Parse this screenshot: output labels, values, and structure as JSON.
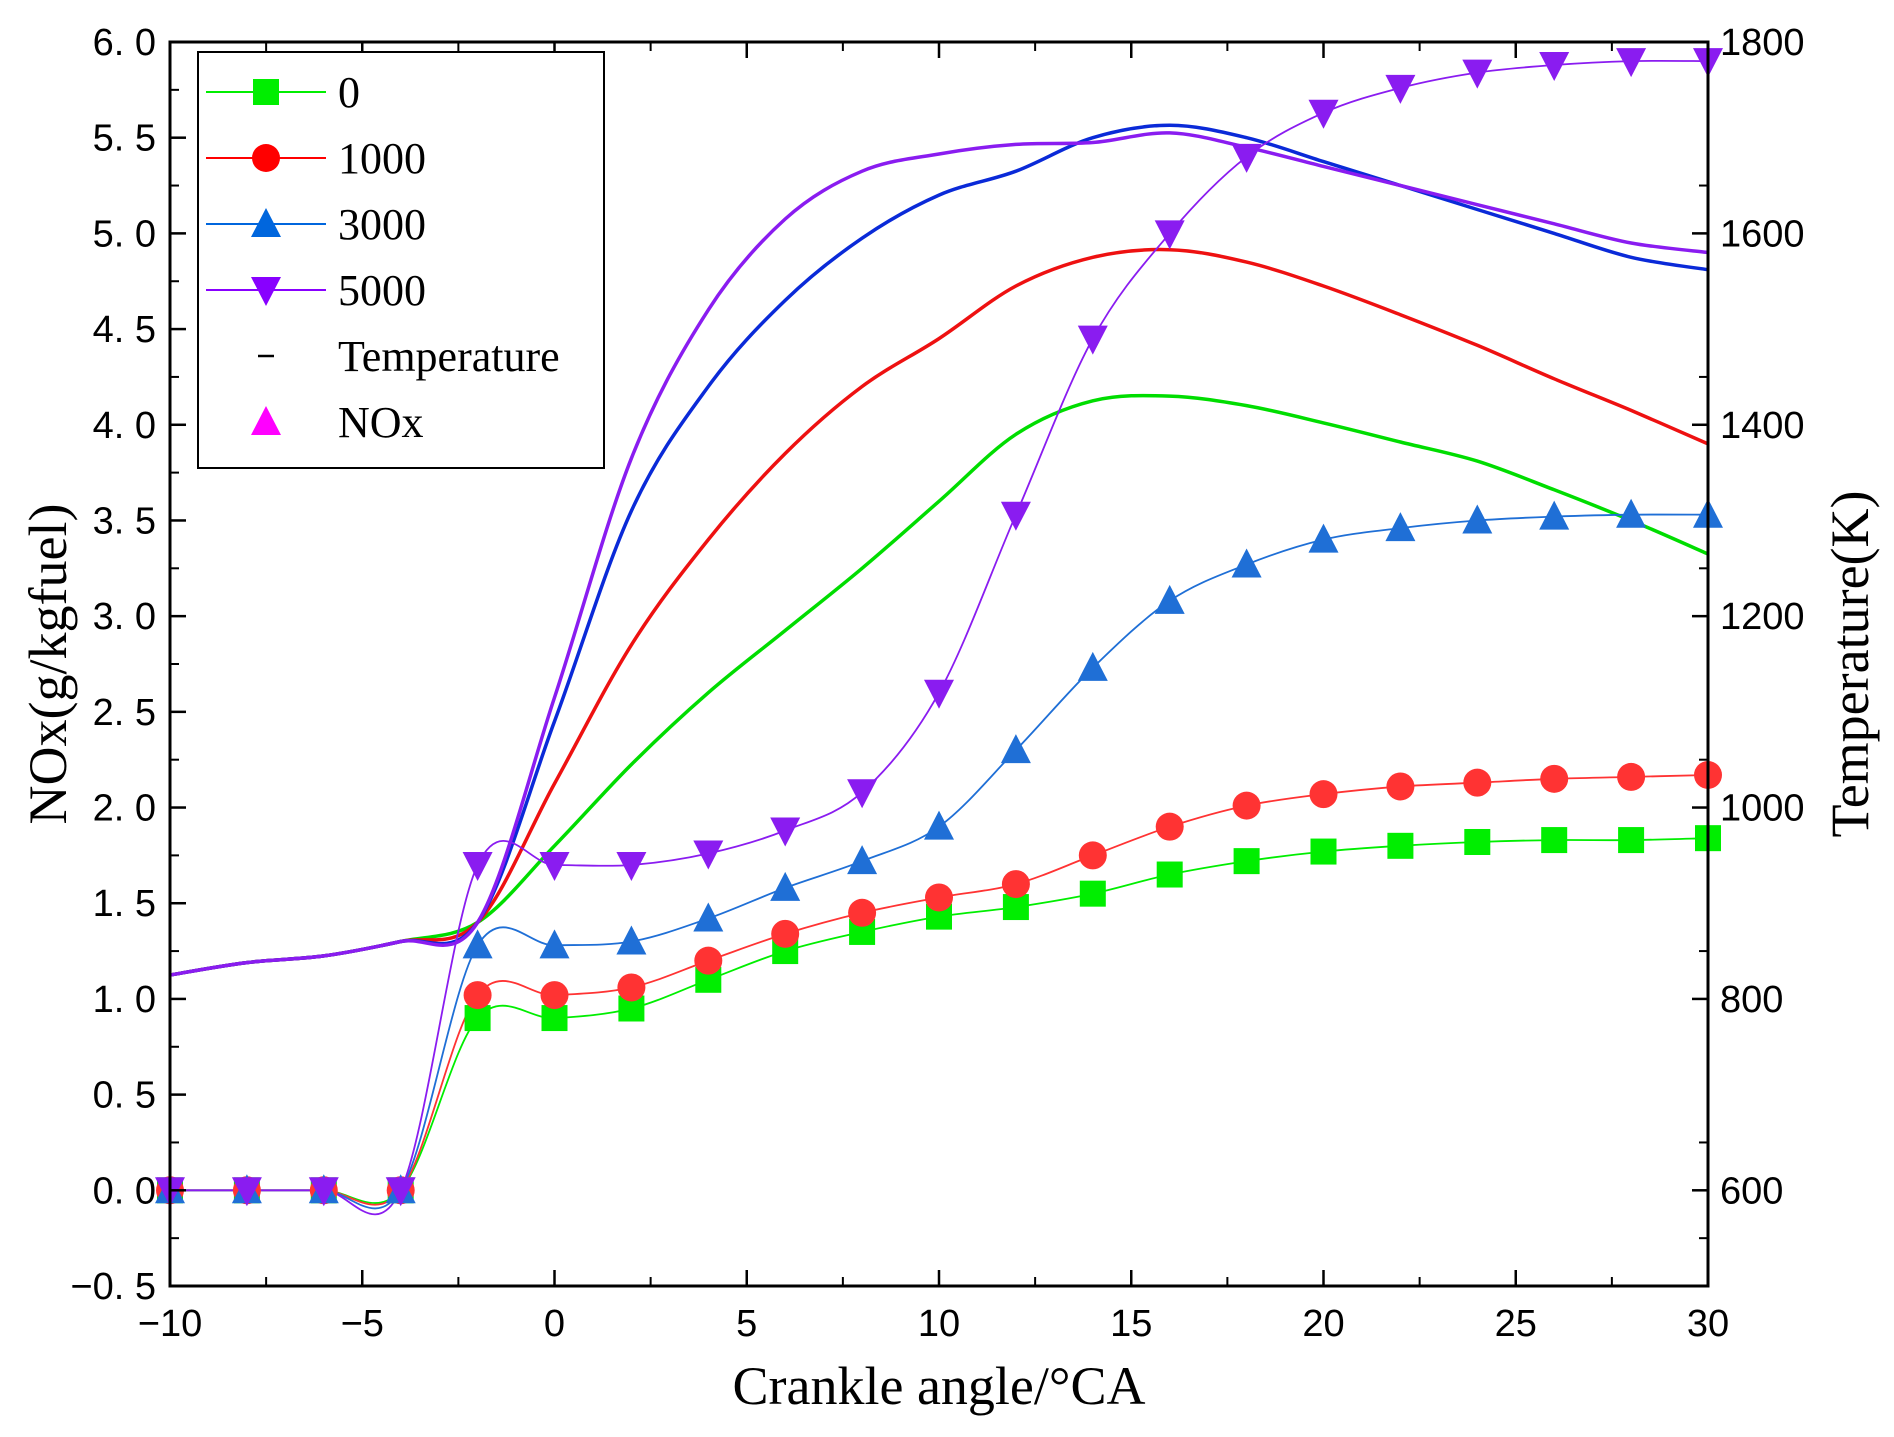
{
  "chart_data": {
    "type": "line",
    "title": "",
    "xlabel": "Crankle angle/°CA",
    "ylabel_left": "NOx(g/kgfuel)",
    "ylabel_right": "Temperature(K)",
    "xlim": [
      -10,
      30
    ],
    "ylim_left": [
      -0.5,
      6.0
    ],
    "ylim_right": [
      500,
      1800
    ],
    "x_ticks": [
      -10,
      -5,
      0,
      5,
      10,
      15,
      20,
      25,
      30
    ],
    "x_tick_labels": [
      "−10",
      "−5",
      "0",
      "5",
      "10",
      "15",
      "20",
      "25",
      "30"
    ],
    "y_left_ticks": [
      -0.5,
      0.0,
      0.5,
      1.0,
      1.5,
      2.0,
      2.5,
      3.0,
      3.5,
      4.0,
      4.5,
      5.0,
      5.5,
      6.0
    ],
    "y_left_tick_labels": [
      "−0. 5",
      "0. 0",
      "0. 5",
      "1. 0",
      "1. 5",
      "2. 0",
      "2. 5",
      "3. 0",
      "3. 5",
      "4. 0",
      "4. 5",
      "5. 0",
      "5. 5",
      "6. 0"
    ],
    "y_right_ticks": [
      600,
      800,
      1000,
      1200,
      1400,
      1600,
      1800
    ],
    "y_right_tick_labels": [
      "600",
      "800",
      "1000",
      "1200",
      "1400",
      "1600",
      "1800"
    ],
    "grid": false,
    "legend_position": "top-left",
    "legend": [
      {
        "label": "0",
        "color": "#00ee00",
        "marker": "square"
      },
      {
        "label": "1000",
        "color": "#ff0000",
        "marker": "circle"
      },
      {
        "label": "3000",
        "color": "#0066dd",
        "marker": "triangle-up"
      },
      {
        "label": "5000",
        "color": "#8800ff",
        "marker": "triangle-down"
      },
      {
        "label": "Temperature",
        "color": "#000000",
        "marker": "line"
      },
      {
        "label": "NOx",
        "color": "#ff00ff",
        "marker": "triangle-up"
      }
    ],
    "nox_series": [
      {
        "name": "0",
        "color": "#00ee00",
        "marker": "square",
        "x": [
          -10,
          -8,
          -6,
          -4,
          -2,
          0,
          2,
          4,
          6,
          8,
          10,
          12,
          14,
          16,
          18,
          20,
          22,
          24,
          26,
          28,
          30
        ],
        "y": [
          0,
          0,
          0,
          0,
          0.9,
          0.9,
          0.95,
          1.1,
          1.25,
          1.35,
          1.43,
          1.48,
          1.55,
          1.65,
          1.72,
          1.77,
          1.8,
          1.82,
          1.83,
          1.83,
          1.84
        ]
      },
      {
        "name": "1000",
        "color": "#ff3333",
        "marker": "circle",
        "x": [
          -10,
          -8,
          -6,
          -4,
          -2,
          0,
          2,
          4,
          6,
          8,
          10,
          12,
          14,
          16,
          18,
          20,
          22,
          24,
          26,
          28,
          30
        ],
        "y": [
          0,
          0,
          0,
          0,
          1.02,
          1.02,
          1.06,
          1.2,
          1.34,
          1.45,
          1.53,
          1.6,
          1.75,
          1.9,
          2.01,
          2.07,
          2.11,
          2.13,
          2.15,
          2.16,
          2.17
        ]
      },
      {
        "name": "3000",
        "color": "#1f6fd6",
        "marker": "triangle-up",
        "x": [
          -10,
          -8,
          -6,
          -4,
          -2,
          0,
          2,
          4,
          6,
          8,
          10,
          12,
          14,
          16,
          18,
          20,
          22,
          24,
          26,
          28,
          30
        ],
        "y": [
          0,
          0,
          0,
          0,
          1.28,
          1.28,
          1.3,
          1.42,
          1.58,
          1.72,
          1.9,
          2.3,
          2.73,
          3.08,
          3.27,
          3.4,
          3.46,
          3.5,
          3.52,
          3.53,
          3.53
        ]
      },
      {
        "name": "5000",
        "color": "#8a1cf0",
        "marker": "triangle-down",
        "x": [
          -10,
          -8,
          -6,
          -4,
          -2,
          0,
          2,
          4,
          6,
          8,
          10,
          12,
          14,
          16,
          18,
          20,
          22,
          24,
          26,
          28,
          30
        ],
        "y": [
          0,
          0,
          0,
          0,
          1.7,
          1.7,
          1.7,
          1.76,
          1.88,
          2.08,
          2.6,
          3.53,
          4.45,
          5.0,
          5.4,
          5.63,
          5.76,
          5.84,
          5.88,
          5.9,
          5.9
        ]
      }
    ],
    "temperature_series": [
      {
        "name": "0",
        "color": "#00dd00",
        "x": [
          -10,
          -8,
          -6,
          -4,
          -2,
          0,
          2,
          4,
          6,
          8,
          10,
          12,
          14,
          16,
          18,
          20,
          22,
          24,
          26,
          28,
          30
        ],
        "y": [
          825,
          838,
          845,
          860,
          880,
          960,
          1045,
          1120,
          1185,
          1250,
          1320,
          1390,
          1425,
          1430,
          1420,
          1402,
          1382,
          1362,
          1332,
          1300,
          1265
        ]
      },
      {
        "name": "1000",
        "color": "#ee1111",
        "x": [
          -10,
          -8,
          -6,
          -4,
          -2,
          0,
          2,
          4,
          6,
          8,
          10,
          12,
          14,
          16,
          18,
          20,
          22,
          24,
          26,
          28,
          30
        ],
        "y": [
          825,
          838,
          845,
          860,
          880,
          1025,
          1170,
          1280,
          1370,
          1440,
          1490,
          1545,
          1575,
          1583,
          1570,
          1545,
          1515,
          1483,
          1448,
          1415,
          1380
        ]
      },
      {
        "name": "3000",
        "color": "#0a2ad8",
        "x": [
          -10,
          -8,
          -6,
          -4,
          -2,
          0,
          2,
          4,
          6,
          8,
          10,
          12,
          14,
          16,
          18,
          20,
          22,
          24,
          26,
          28,
          30
        ],
        "y": [
          825,
          838,
          845,
          860,
          880,
          1090,
          1310,
          1440,
          1530,
          1595,
          1640,
          1665,
          1700,
          1713,
          1700,
          1675,
          1650,
          1625,
          1600,
          1575,
          1562
        ]
      },
      {
        "name": "5000",
        "color": "#8a1cf0",
        "x": [
          -10,
          -8,
          -6,
          -4,
          -2,
          0,
          2,
          4,
          6,
          8,
          10,
          12,
          14,
          16,
          18,
          20,
          22,
          24,
          26,
          28,
          30
        ],
        "y": [
          825,
          838,
          845,
          860,
          880,
          1115,
          1365,
          1520,
          1615,
          1665,
          1683,
          1693,
          1695,
          1705,
          1690,
          1670,
          1650,
          1630,
          1610,
          1590,
          1580
        ]
      }
    ]
  }
}
